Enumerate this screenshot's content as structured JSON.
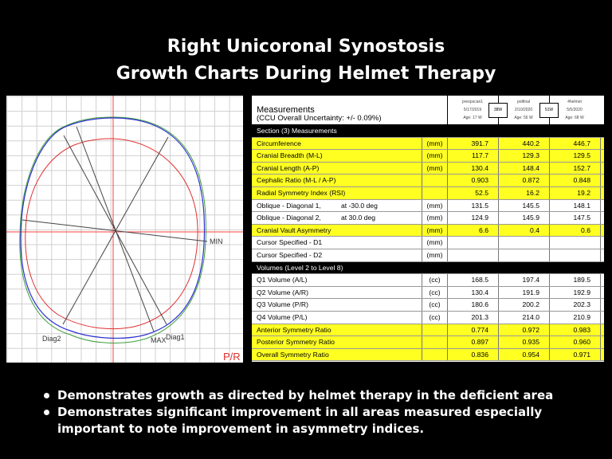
{
  "title": {
    "line1": "Right Unicoronal Synostosis",
    "line2": "Growth Charts During Helmet Therapy"
  },
  "chart": {
    "labels": {
      "min": "MIN",
      "max": "MAX",
      "diag1": "Diag1",
      "diag2": "Diag2",
      "orientation": "P/R"
    },
    "colors": {
      "scan1": "#e03030",
      "scan2": "#3030d0",
      "scan3": "#40a040",
      "axes": "#ff4040",
      "grid": "#d0d0d0"
    }
  },
  "table": {
    "title": "Measurements",
    "uncertainty": "(CCU Overall Uncertainty: +/- 0.09%)",
    "scans": [
      {
        "name": "preopscan1",
        "date": "5/17/2019",
        "age": "Age: 17 W"
      },
      {
        "name": "potfinal",
        "date": "2/10/2020",
        "age": "Age: 56 W"
      },
      {
        "name": "4helmet",
        "date": "5/5/2020",
        "age": "Age: 68 W"
      }
    ],
    "intervals": [
      "38W",
      "51W"
    ],
    "rows": [
      {
        "type": "sec",
        "label": "Section (3) Measurements"
      },
      {
        "type": "y",
        "label": "Circumference",
        "unit": "(mm)",
        "v": [
          "391.7",
          "440.2",
          "446.7"
        ]
      },
      {
        "type": "y",
        "label": "Cranial Breadth (M-L)",
        "unit": "(mm)",
        "v": [
          "117.7",
          "129.3",
          "129.5"
        ]
      },
      {
        "type": "y",
        "label": "Cranial Length (A-P)",
        "unit": "(mm)",
        "v": [
          "130.4",
          "148.4",
          "152.7"
        ]
      },
      {
        "type": "y",
        "label": "Cephalic Ratio (M-L / A-P)",
        "unit": "",
        "v": [
          "0.903",
          "0.872",
          "0.848"
        ]
      },
      {
        "type": "y",
        "label": "Radial Symmetry Index (RSI)",
        "unit": "",
        "v": [
          "52.5",
          "16.2",
          "19.2"
        ]
      },
      {
        "type": "w",
        "label": "Oblique - Diagonal 1,",
        "sub": "at -30.0 deg",
        "unit": "(mm)",
        "v": [
          "131.5",
          "145.5",
          "148.1"
        ]
      },
      {
        "type": "w",
        "label": "Oblique - Diagonal 2,",
        "sub": "at 30.0 deg",
        "unit": "(mm)",
        "v": [
          "124.9",
          "145.9",
          "147.5"
        ]
      },
      {
        "type": "y",
        "label": "Cranial Vault Asymmetry",
        "unit": "(mm)",
        "v": [
          "6.6",
          "0.4",
          "0.6"
        ]
      },
      {
        "type": "w",
        "label": "Cursor Specified - D1",
        "unit": "(mm)",
        "v": [
          "",
          "",
          ""
        ]
      },
      {
        "type": "w",
        "label": "Cursor Specified - D2",
        "unit": "(mm)",
        "v": [
          "",
          "",
          ""
        ]
      },
      {
        "type": "sec",
        "label": "Volumes (Level 2 to Level 8)"
      },
      {
        "type": "w",
        "label": "Q1 Volume (A/L)",
        "unit": "(cc)",
        "v": [
          "168.5",
          "197.4",
          "189.5"
        ]
      },
      {
        "type": "w",
        "label": "Q2 Volume (A/R)",
        "unit": "(cc)",
        "v": [
          "130.4",
          "191.9",
          "192.9"
        ]
      },
      {
        "type": "w",
        "label": "Q3 Volume (P/R)",
        "unit": "(cc)",
        "v": [
          "180.6",
          "200.2",
          "202.3"
        ]
      },
      {
        "type": "w",
        "label": "Q4 Volume (P/L)",
        "unit": "(cc)",
        "v": [
          "201.3",
          "214.0",
          "210.9"
        ]
      },
      {
        "type": "y",
        "label": "Anterior Symmetry Ratio",
        "unit": "",
        "v": [
          "0.774",
          "0.972",
          "0.983"
        ]
      },
      {
        "type": "y",
        "label": "Posterior Symmetry Ratio",
        "unit": "",
        "v": [
          "0.897",
          "0.935",
          "0.960"
        ]
      },
      {
        "type": "y",
        "label": "Overall Symmetry Ratio",
        "unit": "",
        "v": [
          "0.836",
          "0.954",
          "0.971"
        ]
      }
    ]
  },
  "bullets": [
    "Demonstrates growth as directed by helmet therapy in the deficient area",
    "Demonstrates significant improvement in all areas measured especially important to note improvement in asymmetry indices."
  ]
}
